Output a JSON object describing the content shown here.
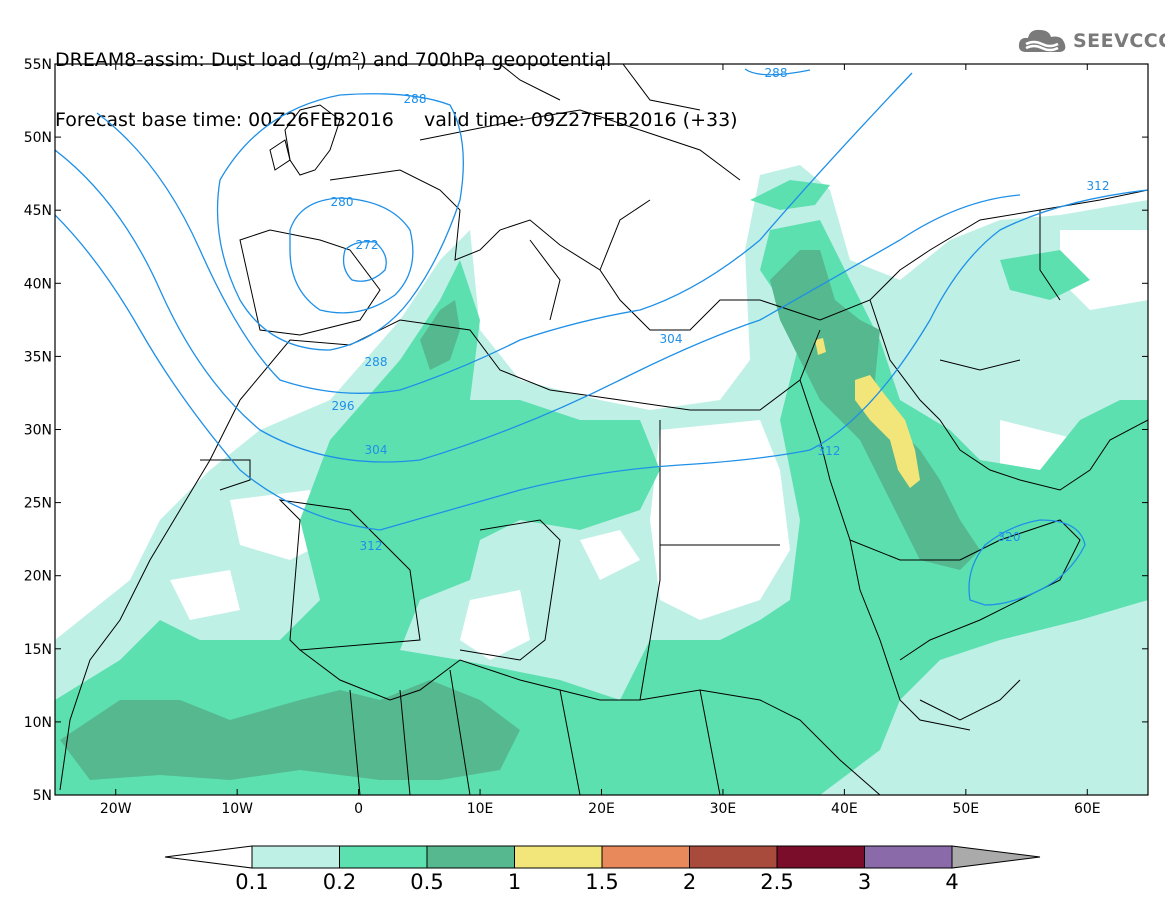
{
  "title": {
    "line1": "DREAM8-assim: Dust load (g/m²) and 700hPa geopotential",
    "line2": "Forecast base time: 00Z26FEB2016     valid time: 09Z27FEB2016 (+33)"
  },
  "logo": {
    "text": "SEEVCCC",
    "icon": "cloud-icon"
  },
  "map": {
    "lon_range": [
      -25,
      65
    ],
    "lat_range": [
      5,
      55
    ],
    "lon_ticks": [
      "20W",
      "10W",
      "0",
      "10E",
      "20E",
      "30E",
      "40E",
      "50E",
      "60E"
    ],
    "lat_ticks": [
      "55N",
      "50N",
      "45N",
      "40N",
      "35N",
      "30N",
      "25N",
      "20N",
      "15N",
      "10N",
      "5N"
    ],
    "contour_labels": [
      "288",
      "288",
      "280",
      "272",
      "288",
      "296",
      "304",
      "304",
      "312",
      "312",
      "312",
      "320"
    ]
  },
  "colorbar": {
    "labels": [
      "0.1",
      "0.2",
      "0.5",
      "1",
      "1.5",
      "2",
      "2.5",
      "3",
      "4"
    ],
    "colors": [
      "#bff0e6",
      "#5de0b0",
      "#55b88e",
      "#f2e67a",
      "#e8895c",
      "#a84b3c",
      "#7a0e2a",
      "#8a6aa8"
    ],
    "under_color": "#ffffff",
    "over_color": "#aaaaaa"
  },
  "colors": {
    "contour": "#1e90e8",
    "border": "#000000"
  }
}
